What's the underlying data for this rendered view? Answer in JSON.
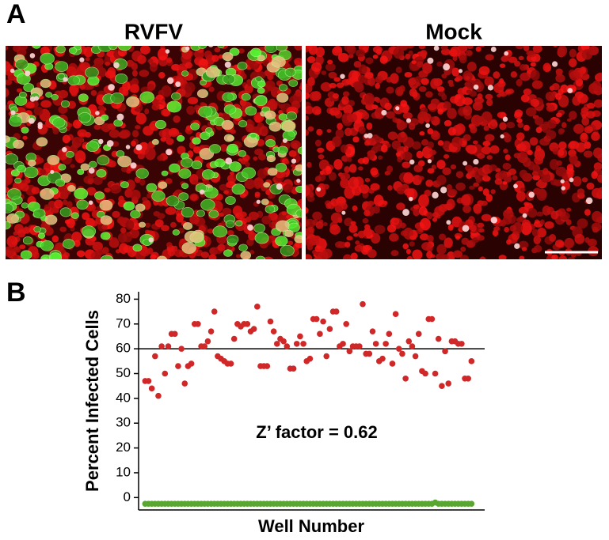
{
  "panel_a": {
    "label": "A",
    "images": [
      {
        "title": "RVFV"
      },
      {
        "title": "Mock"
      }
    ]
  },
  "chart_data": {
    "type": "scatter",
    "panel_label": "B",
    "annotation": "Z’ factor = 0.62",
    "xlabel": "Well Number",
    "ylabel": "Percent Infected Cells",
    "hline": 60,
    "xlim": [
      -1,
      104
    ],
    "ylim": [
      -5,
      83
    ],
    "yticks": [
      0,
      10,
      20,
      30,
      40,
      50,
      60,
      70,
      80
    ],
    "x": [
      1,
      2,
      3,
      4,
      5,
      6,
      7,
      8,
      9,
      10,
      11,
      12,
      13,
      14,
      15,
      16,
      17,
      18,
      19,
      20,
      21,
      22,
      23,
      24,
      25,
      26,
      27,
      28,
      29,
      30,
      31,
      32,
      33,
      34,
      35,
      36,
      37,
      38,
      39,
      40,
      41,
      42,
      43,
      44,
      45,
      46,
      47,
      48,
      49,
      50,
      51,
      52,
      53,
      54,
      55,
      56,
      57,
      58,
      59,
      60,
      61,
      62,
      63,
      64,
      65,
      66,
      67,
      68,
      69,
      70,
      71,
      72,
      73,
      74,
      75,
      76,
      77,
      78,
      79,
      80,
      81,
      82,
      83,
      84,
      85,
      86,
      87,
      88,
      89,
      90,
      91,
      92,
      93,
      94,
      95,
      96,
      97,
      98,
      99,
      100
    ],
    "series": [
      {
        "color": "#d02828",
        "values": [
          47,
          47,
          44,
          57,
          41,
          61,
          50,
          61,
          66,
          66,
          53,
          60,
          46,
          53,
          54,
          70,
          70,
          61,
          61,
          63,
          67,
          75,
          57,
          56,
          55,
          54,
          54,
          64,
          70,
          69,
          70,
          70,
          67,
          68,
          77,
          53,
          53,
          53,
          71,
          67,
          62,
          64,
          63,
          61,
          52,
          52,
          62,
          65,
          62,
          55,
          56,
          72,
          72,
          66,
          71,
          57,
          68,
          75,
          75,
          61,
          62,
          70,
          59,
          61,
          61,
          61,
          78,
          58,
          58,
          67,
          62,
          55,
          56,
          62,
          66,
          54,
          74,
          60,
          58,
          48,
          63,
          61,
          57,
          66,
          51,
          50,
          72,
          72,
          50,
          64,
          45,
          59,
          46,
          63,
          63,
          62,
          62,
          48,
          48,
          55
        ]
      },
      {
        "color": "#5aa632",
        "values": [
          -2.5,
          -2.5,
          -2.5,
          -2.5,
          -2.5,
          -2.5,
          -2.5,
          -2.5,
          -2.5,
          -2.5,
          -2.5,
          -2.5,
          -2.5,
          -2.5,
          -2.5,
          -2.5,
          -2.5,
          -2.5,
          -2.5,
          -2.5,
          -2.5,
          -2.5,
          -2.5,
          -2.5,
          -2.5,
          -2.5,
          -2.5,
          -2.5,
          -2.5,
          -2.5,
          -2.5,
          -2.5,
          -2.5,
          -2.5,
          -2.5,
          -2.5,
          -2.5,
          -2.5,
          -2.5,
          -2.5,
          -2.5,
          -2.5,
          -2.5,
          -2.5,
          -2.5,
          -2.5,
          -2.5,
          -2.5,
          -2.5,
          -2.5,
          -2.5,
          -2.5,
          -2.5,
          -2.5,
          -2.5,
          -2.5,
          -2.5,
          -2.5,
          -2.5,
          -2.5,
          -2.5,
          -2.5,
          -2.5,
          -2.5,
          -2.5,
          -2.5,
          -2.5,
          -2.5,
          -2.5,
          -2.5,
          -2.5,
          -2.5,
          -2.5,
          -2.5,
          -2.5,
          -2.5,
          -2.5,
          -2.5,
          -2.5,
          -2.5,
          -2.5,
          -2.5,
          -2.5,
          -2.5,
          -2.5,
          -2.5,
          -2.5,
          -2.5,
          -2,
          -2.5,
          -2.5,
          -2.5,
          -2.5,
          -2.5,
          -2.5,
          -2.5,
          -2.5,
          -2.5,
          -2.5,
          -2.5
        ]
      }
    ]
  }
}
